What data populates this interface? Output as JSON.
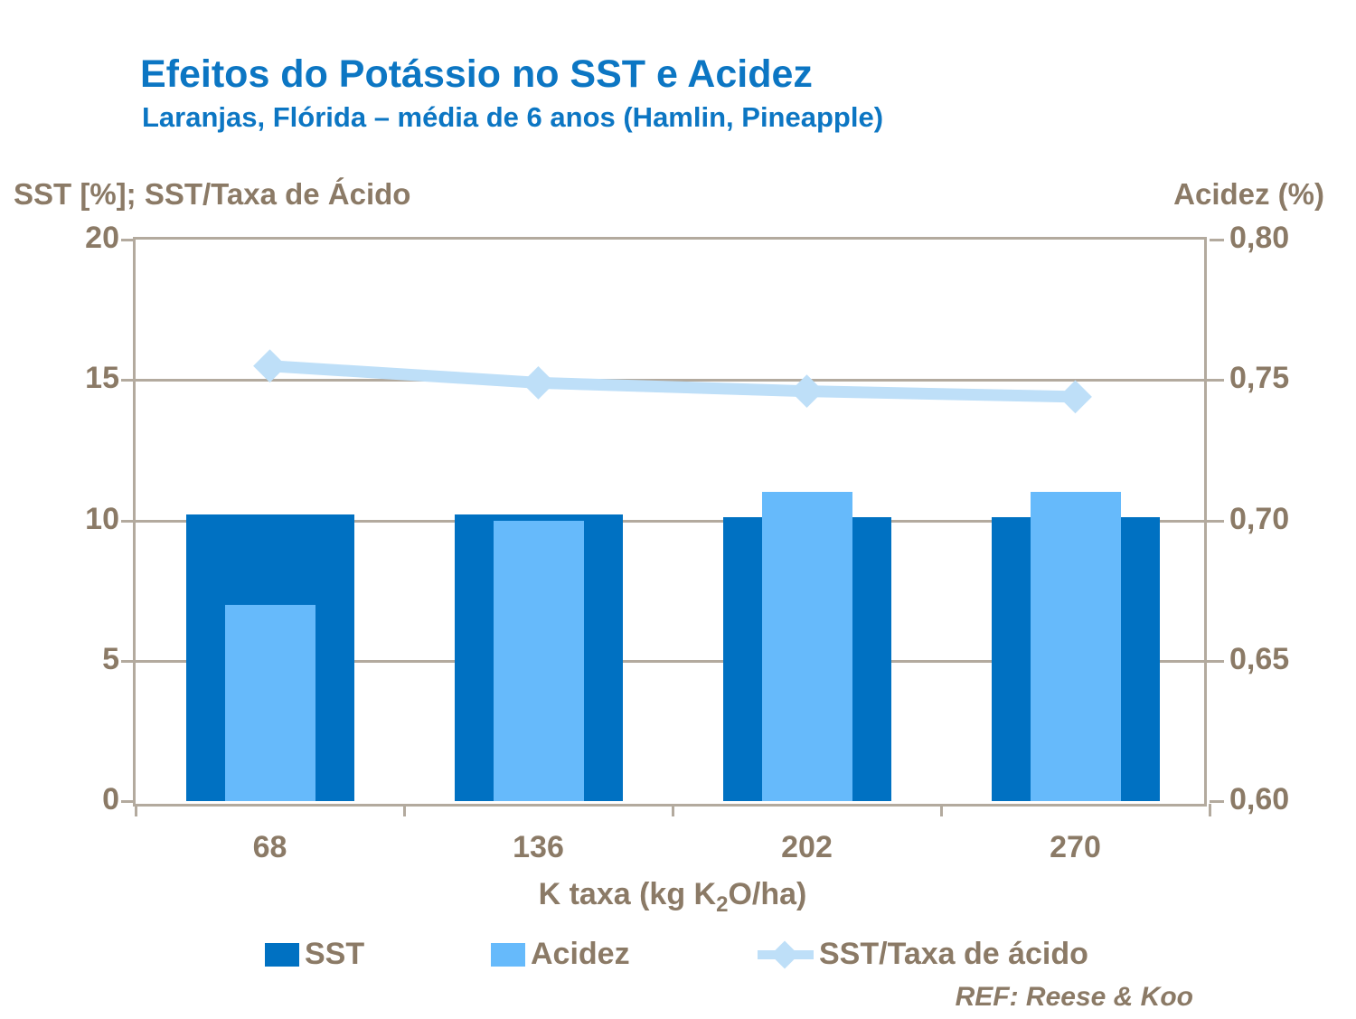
{
  "title": "Efeitos do Potássio no SST e Acidez",
  "subtitle": "Laranjas, Flórida – média de 6 anos (Hamlin, Pineapple)",
  "left_axis_title": "SST [%]; SST/Taxa de Ácido",
  "right_axis_title": "Acidez (%)",
  "ref_text": "REF: Reese & Koo",
  "colors": {
    "title_blue": "#0c76c3",
    "text_brown": "#8b7a66",
    "grid": "#b3aa9e",
    "sst_bar": "#0071c2",
    "acidez_bar": "#66bafb",
    "ratio_line": "#bedff8"
  },
  "chart_data": {
    "type": "bar",
    "subtype": "combo-bar-line-overlapped",
    "categories": [
      "68",
      "136",
      "202",
      "270"
    ],
    "xlabel_prefix": "K taxa (kg K",
    "xlabel_sub": "2",
    "xlabel_suffix": "O/ha)",
    "left_axis": {
      "min": 0,
      "max": 20,
      "ticks": [
        0,
        5,
        10,
        15,
        20
      ],
      "tick_labels": [
        "0",
        "5",
        "10",
        "15",
        "20"
      ]
    },
    "right_axis": {
      "min": 0.6,
      "max": 0.8,
      "ticks": [
        0.6,
        0.65,
        0.7,
        0.75,
        0.8
      ],
      "tick_labels": [
        "0,60",
        "0,65",
        "0,70",
        "0,75",
        "0,80"
      ]
    },
    "grid": true,
    "legend_position": "bottom",
    "series": [
      {
        "name": "SST",
        "type": "bar",
        "axis": "left",
        "values": [
          10.2,
          10.2,
          10.1,
          10.1
        ],
        "color": "#0071c2"
      },
      {
        "name": "Acidez",
        "type": "bar",
        "axis": "right",
        "values": [
          0.67,
          0.7,
          0.71,
          0.71
        ],
        "color": "#66bafb"
      },
      {
        "name": "SST/Taxa de ácido",
        "type": "line",
        "axis": "left",
        "values": [
          15.5,
          14.9,
          14.6,
          14.4
        ],
        "color": "#bedff8"
      }
    ]
  },
  "legend": {
    "items": [
      {
        "label": "SST"
      },
      {
        "label": "Acidez"
      },
      {
        "label": "SST/Taxa de ácido"
      }
    ]
  }
}
